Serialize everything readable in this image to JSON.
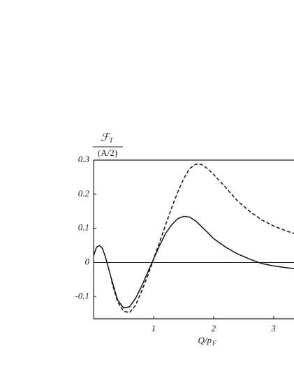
{
  "chart_data": {
    "type": "line",
    "ylabel": {
      "numerator": "ℱ",
      "numerator_sub": "T",
      "denominator": "(A/2)"
    },
    "xlabel": {
      "main": "Q/p",
      "sub": "F"
    },
    "x": [
      0,
      0.05,
      0.1,
      0.15,
      0.2,
      0.3,
      0.4,
      0.5,
      0.6,
      0.7,
      0.8,
      0.9,
      1.0,
      1.1,
      1.2,
      1.3,
      1.4,
      1.5,
      1.6,
      1.7,
      1.8,
      1.9,
      2.0,
      2.2,
      2.4,
      2.6,
      2.8,
      3.0,
      3.2,
      3.34
    ],
    "series": [
      {
        "style": "solid",
        "color": "#111111",
        "values": [
          0.02,
          0.045,
          0.05,
          0.04,
          0.015,
          -0.05,
          -0.11,
          -0.133,
          -0.13,
          -0.105,
          -0.07,
          -0.03,
          0.01,
          0.05,
          0.085,
          0.11,
          0.128,
          0.135,
          0.133,
          0.122,
          0.105,
          0.088,
          0.07,
          0.045,
          0.025,
          0.01,
          -0.003,
          -0.01,
          -0.015,
          -0.018
        ]
      },
      {
        "style": "dashed",
        "color": "#111111",
        "values": [
          null,
          null,
          null,
          null,
          null,
          -0.055,
          -0.115,
          -0.143,
          -0.147,
          -0.125,
          -0.085,
          -0.04,
          0.01,
          0.06,
          0.11,
          0.16,
          0.205,
          0.245,
          0.275,
          0.288,
          0.287,
          0.275,
          0.258,
          0.22,
          0.18,
          0.15,
          0.125,
          0.107,
          0.093,
          0.085
        ]
      }
    ],
    "xlim": [
      0,
      3.34
    ],
    "ylim": [
      -0.165,
      0.3
    ],
    "xticks": [
      1,
      2,
      3
    ],
    "yticks": [
      0.3,
      0.2,
      0.1,
      0,
      -0.1
    ],
    "hline": 0
  }
}
